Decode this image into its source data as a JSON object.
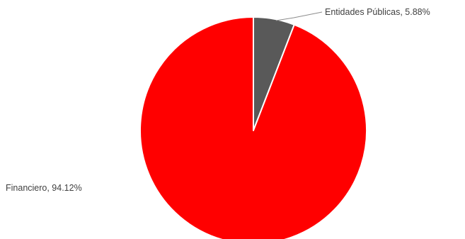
{
  "chart_data": {
    "type": "pie",
    "title": "",
    "slices": [
      {
        "label": "Entidades Públicas",
        "value": 5.88,
        "display": "Entidades Públicas, 5.88%",
        "color": "#595959"
      },
      {
        "label": "Financiero",
        "value": 94.12,
        "display": "Financiero, 94.12%",
        "color": "#ff0000"
      }
    ],
    "legend": "none",
    "data_labels": "outside"
  }
}
